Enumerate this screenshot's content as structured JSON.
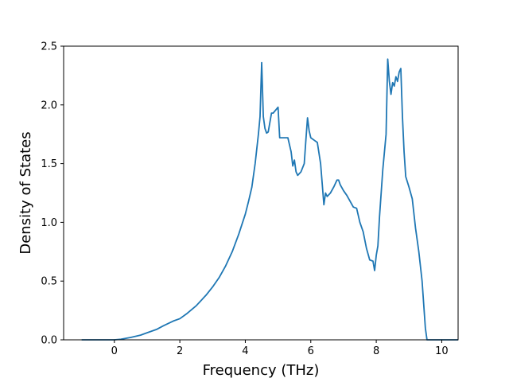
{
  "chart_data": {
    "type": "line",
    "xlabel": "Frequency (THz)",
    "ylabel": "Density of States",
    "xlim": [
      -1.55,
      10.5
    ],
    "ylim": [
      0,
      2.5
    ],
    "xticks": [
      0,
      2,
      4,
      6,
      8,
      10
    ],
    "xtick_labels": [
      "0",
      "2",
      "4",
      "6",
      "8",
      "10"
    ],
    "yticks": [
      0.0,
      0.5,
      1.0,
      1.5,
      2.0,
      2.5
    ],
    "ytick_labels": [
      "0.0",
      "0.5",
      "1.0",
      "1.5",
      "2.0",
      "2.5"
    ],
    "grid": false,
    "line_color": "#1f77b4",
    "series": [
      {
        "x": [
          -1.0,
          0.0,
          0.2,
          0.5,
          0.8,
          1.0,
          1.3,
          1.5,
          1.8,
          2.0,
          2.2,
          2.5,
          2.8,
          3.0,
          3.2,
          3.4,
          3.6,
          3.8,
          4.0,
          4.1,
          4.2,
          4.3,
          4.4,
          4.45,
          4.5,
          4.55,
          4.6,
          4.65,
          4.7,
          4.8,
          4.85,
          5.0,
          5.05,
          5.1,
          5.3,
          5.4,
          5.45,
          5.5,
          5.55,
          5.6,
          5.7,
          5.8,
          5.85,
          5.9,
          5.95,
          6.0,
          6.1,
          6.2,
          6.3,
          6.4,
          6.45,
          6.5,
          6.6,
          6.7,
          6.8,
          6.85,
          6.9,
          7.0,
          7.1,
          7.2,
          7.3,
          7.4,
          7.5,
          7.6,
          7.7,
          7.8,
          7.9,
          7.95,
          8.0,
          8.05,
          8.1,
          8.2,
          8.3,
          8.35,
          8.4,
          8.45,
          8.5,
          8.55,
          8.6,
          8.65,
          8.7,
          8.75,
          8.8,
          8.85,
          8.9,
          9.0,
          9.1,
          9.2,
          9.3,
          9.4,
          9.5,
          9.55,
          9.6,
          9.7,
          10.5
        ],
        "y": [
          0.0,
          0.0,
          0.005,
          0.02,
          0.04,
          0.06,
          0.09,
          0.12,
          0.16,
          0.18,
          0.22,
          0.29,
          0.38,
          0.45,
          0.53,
          0.63,
          0.75,
          0.9,
          1.07,
          1.18,
          1.3,
          1.5,
          1.75,
          1.9,
          2.36,
          1.9,
          1.8,
          1.76,
          1.77,
          1.93,
          1.93,
          1.98,
          1.72,
          1.72,
          1.72,
          1.6,
          1.48,
          1.53,
          1.43,
          1.4,
          1.43,
          1.5,
          1.7,
          1.89,
          1.78,
          1.72,
          1.7,
          1.68,
          1.5,
          1.15,
          1.25,
          1.22,
          1.25,
          1.3,
          1.36,
          1.36,
          1.32,
          1.27,
          1.23,
          1.18,
          1.13,
          1.12,
          1.0,
          0.92,
          0.78,
          0.68,
          0.67,
          0.59,
          0.72,
          0.8,
          1.05,
          1.45,
          1.75,
          2.39,
          2.2,
          2.09,
          2.19,
          2.16,
          2.24,
          2.2,
          2.28,
          2.31,
          1.9,
          1.6,
          1.39,
          1.3,
          1.2,
          0.95,
          0.75,
          0.5,
          0.1,
          0.0,
          0.0,
          0.0,
          0.0
        ]
      }
    ]
  }
}
